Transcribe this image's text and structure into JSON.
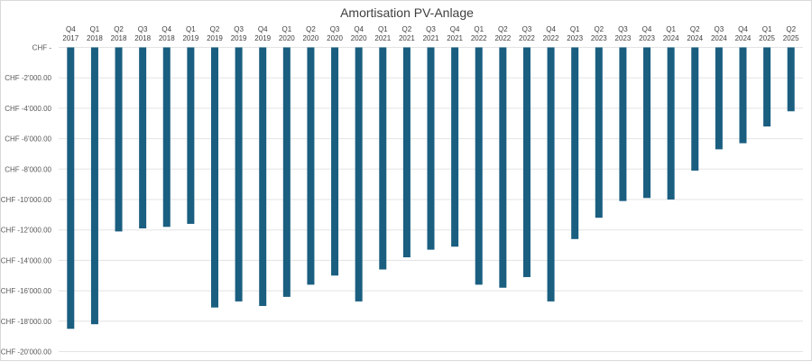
{
  "chart_data": {
    "type": "bar",
    "title": "Amortisation PV-Anlage",
    "xlabel": "",
    "ylabel": "",
    "x_axis_position": "top",
    "grid": true,
    "color": "#1a5e80",
    "ylim": [
      -20000,
      0
    ],
    "yticks": [
      {
        "value": 0,
        "label": "CHF -"
      },
      {
        "value": -2000,
        "label": "CHF -2'000.00"
      },
      {
        "value": -4000,
        "label": "CHF -4'000.00"
      },
      {
        "value": -6000,
        "label": "CHF -6'000.00"
      },
      {
        "value": -8000,
        "label": "CHF -8'000.00"
      },
      {
        "value": -10000,
        "label": "CHF -10'000.00"
      },
      {
        "value": -12000,
        "label": "CHF -12'000.00"
      },
      {
        "value": -14000,
        "label": "CHF -14'000.00"
      },
      {
        "value": -16000,
        "label": "CHF -16'000.00"
      },
      {
        "value": -18000,
        "label": "CHF -18'000.00"
      },
      {
        "value": -20000,
        "label": "CHF -20'000.00"
      }
    ],
    "categories": [
      {
        "q": "Q4",
        "y": "2017"
      },
      {
        "q": "Q1",
        "y": "2018"
      },
      {
        "q": "Q2",
        "y": "2018"
      },
      {
        "q": "Q3",
        "y": "2018"
      },
      {
        "q": "Q4",
        "y": "2018"
      },
      {
        "q": "Q1",
        "y": "2019"
      },
      {
        "q": "Q2",
        "y": "2019"
      },
      {
        "q": "Q3",
        "y": "2019"
      },
      {
        "q": "Q4",
        "y": "2019"
      },
      {
        "q": "Q1",
        "y": "2020"
      },
      {
        "q": "Q2",
        "y": "2020"
      },
      {
        "q": "Q3",
        "y": "2020"
      },
      {
        "q": "Q4",
        "y": "2020"
      },
      {
        "q": "Q1",
        "y": "2021"
      },
      {
        "q": "Q2",
        "y": "2021"
      },
      {
        "q": "Q3",
        "y": "2021"
      },
      {
        "q": "Q4",
        "y": "2021"
      },
      {
        "q": "Q1",
        "y": "2022"
      },
      {
        "q": "Q2",
        "y": "2022"
      },
      {
        "q": "Q3",
        "y": "2022"
      },
      {
        "q": "Q4",
        "y": "2022"
      },
      {
        "q": "Q1",
        "y": "2023"
      },
      {
        "q": "Q2",
        "y": "2023"
      },
      {
        "q": "Q3",
        "y": "2023"
      },
      {
        "q": "Q4",
        "y": "2023"
      },
      {
        "q": "Q1",
        "y": "2024"
      },
      {
        "q": "Q2",
        "y": "2024"
      },
      {
        "q": "Q3",
        "y": "2024"
      },
      {
        "q": "Q4",
        "y": "2024"
      },
      {
        "q": "Q1",
        "y": "2025"
      },
      {
        "q": "Q2",
        "y": "2025"
      }
    ],
    "values": [
      -18500,
      -18200,
      -12100,
      -11900,
      -11800,
      -11600,
      -17100,
      -16700,
      -17000,
      -16400,
      -15600,
      -15000,
      -16700,
      -14600,
      -13800,
      -13300,
      -13100,
      -15600,
      -15800,
      -15100,
      -16700,
      -12600,
      -11200,
      -10100,
      -9900,
      -10000,
      -8100,
      -6700,
      -6300,
      -5200,
      -4200
    ]
  }
}
